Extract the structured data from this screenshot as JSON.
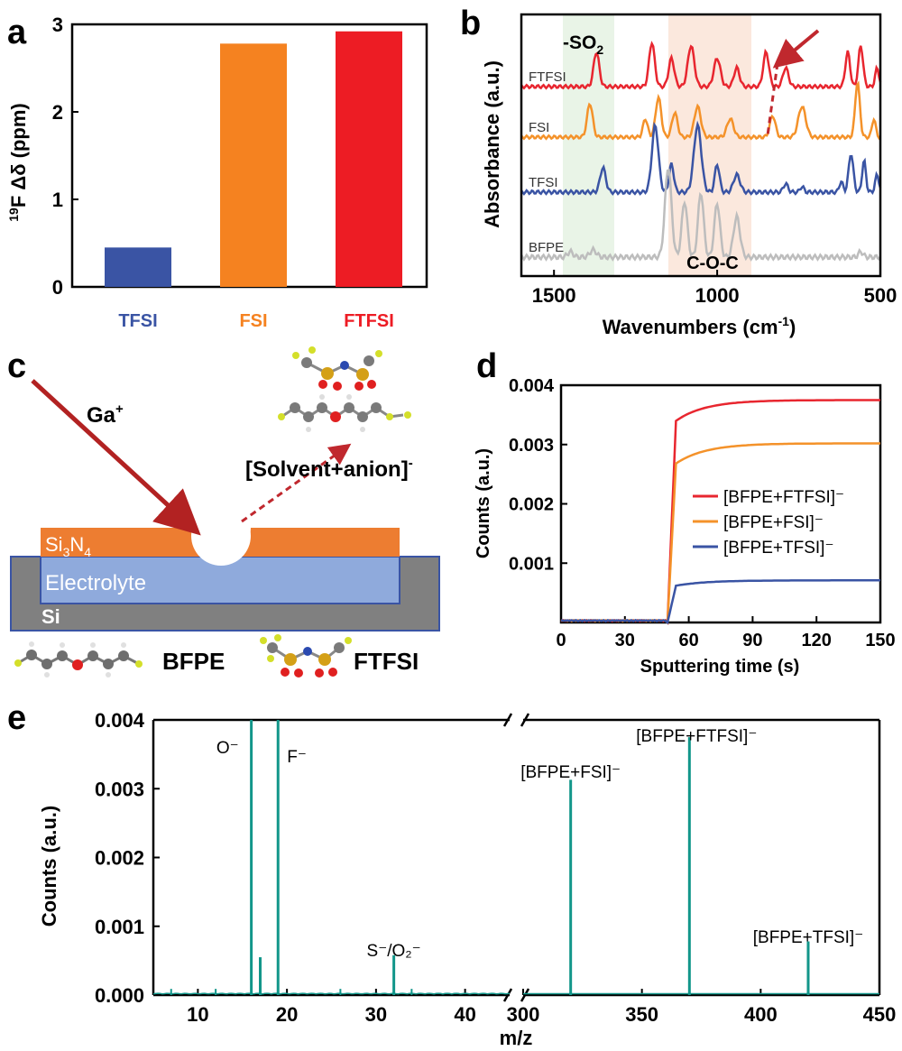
{
  "chart_data": [
    {
      "panel": "a",
      "type": "bar",
      "ylabel_sup": "19",
      "ylabel_main": "F Δδ (ppm)",
      "ylim": [
        0,
        3
      ],
      "yticks": [
        "0",
        "1",
        "2",
        "3"
      ],
      "categories": [
        "TFSI",
        "FSI",
        "FTFSI"
      ],
      "values": [
        0.45,
        2.78,
        2.92
      ],
      "colors": [
        "#3a54a4",
        "#f58220",
        "#ed1c24"
      ]
    },
    {
      "panel": "b",
      "type": "line",
      "xlabel": "Wavenumbers (cm⁻¹)",
      "xlabel_main": "Wavenumbers (cm",
      "xlabel_sup": "-1",
      "xlabel_end": ")",
      "ylabel": "Absorbance (a.u.)",
      "xlim": [
        1600,
        500
      ],
      "xticks": [
        "1500",
        "1000",
        "500"
      ],
      "xtick_values": [
        1500,
        1000,
        500
      ],
      "annotation_so2": "-SO",
      "annotation_so2_sub": "2",
      "annotation_coc": "C-O-C",
      "series": [
        {
          "name": "FTFSI",
          "color": "#e8262f",
          "offset": 3
        },
        {
          "name": "FSI",
          "color": "#f4922a",
          "offset": 2
        },
        {
          "name": "TFSI",
          "color": "#3a54a4",
          "offset": 1
        },
        {
          "name": "BFPE",
          "color": "#bdbdbd",
          "offset": 0
        }
      ]
    },
    {
      "panel": "c",
      "type": "diagram",
      "ion_label": "Ga",
      "ion_sup": "+",
      "fragment_label": "[Solvent+anion]",
      "fragment_sup": "-",
      "layer_top": "Si",
      "layer_top_sub1": "3",
      "layer_top_mid": "N",
      "layer_top_sub2": "4",
      "layer_mid": "Electrolyte",
      "layer_bottom": "Si",
      "legend_left": "BFPE",
      "legend_right": "FTFSI"
    },
    {
      "panel": "d",
      "type": "line",
      "xlabel": "Sputtering time (s)",
      "ylabel": "Counts (a.u.)",
      "xlim": [
        0,
        150
      ],
      "ylim": [
        0,
        0.004
      ],
      "xticks": [
        "0",
        "30",
        "60",
        "90",
        "120",
        "150"
      ],
      "xtick_values": [
        0,
        30,
        60,
        90,
        120,
        150
      ],
      "yticks": [
        "0.001",
        "0.002",
        "0.003",
        "0.004"
      ],
      "ytick_values": [
        0.001,
        0.002,
        0.003,
        0.004
      ],
      "series": [
        {
          "name": "[BFPE+FTFSI]⁻",
          "color": "#e8262f",
          "plateau": 0.00375,
          "jump": 0.0034
        },
        {
          "name": "[BFPE+FSI]⁻",
          "color": "#f4922a",
          "plateau": 0.00302,
          "jump": 0.00268
        },
        {
          "name": "[BFPE+TFSI]⁻",
          "color": "#3a54a4",
          "plateau": 0.00071,
          "jump": 0.00062
        }
      ]
    },
    {
      "panel": "e",
      "type": "bar",
      "xlabel": "m/z",
      "ylabel": "Counts (a.u.)",
      "x_segments": [
        [
          5,
          45
        ],
        [
          300,
          450
        ]
      ],
      "ylim": [
        0,
        0.004
      ],
      "xticks_left": [
        "10",
        "20",
        "30",
        "40"
      ],
      "xticks_left_values": [
        10,
        20,
        30,
        40
      ],
      "xticks_right": [
        "300",
        "350",
        "400",
        "450"
      ],
      "xticks_right_values": [
        300,
        350,
        400,
        450
      ],
      "yticks": [
        "0.000",
        "0.001",
        "0.002",
        "0.003",
        "0.004"
      ],
      "ytick_values": [
        0,
        0.001,
        0.002,
        0.003,
        0.004
      ],
      "color": "#12968a",
      "peaks": [
        {
          "x": 16,
          "y": 0.004,
          "label": "O⁻"
        },
        {
          "x": 17,
          "y": 0.00055,
          "label": ""
        },
        {
          "x": 19,
          "y": 0.004,
          "label": "F⁻"
        },
        {
          "x": 32,
          "y": 0.00058,
          "label": "S⁻/O₂⁻"
        },
        {
          "x": 320,
          "y": 0.00313,
          "label": "[BFPE+FSI]⁻"
        },
        {
          "x": 370,
          "y": 0.00375,
          "label": "[BFPE+FTFSI]⁻"
        },
        {
          "x": 420,
          "y": 0.00078,
          "label": "[BFPE+TFSI]⁻"
        }
      ]
    }
  ],
  "panel_labels": {
    "a": "a",
    "b": "b",
    "c": "c",
    "d": "d",
    "e": "e"
  }
}
